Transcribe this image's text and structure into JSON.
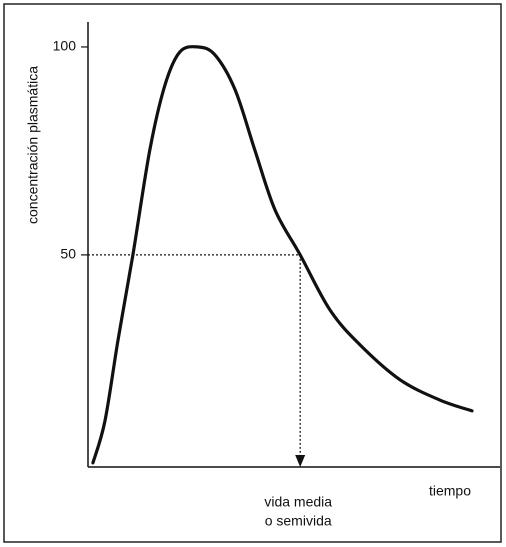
{
  "chart_data": {
    "type": "line",
    "x_label": "tiempo",
    "y_label": "concentración plasmática",
    "x": [
      1.2,
      4.1,
      7.3,
      10.9,
      15.0,
      18.7,
      22.3,
      26.7,
      30.8,
      35.7,
      40.5,
      45.4,
      51.5,
      58.7,
      66.0,
      75.7,
      85.4,
      93.2
    ],
    "values": [
      0,
      10,
      29.6,
      50,
      75.2,
      90.9,
      98.8,
      100,
      98.1,
      89.7,
      75.2,
      60.8,
      50,
      36.8,
      28.4,
      20,
      15.1,
      12.5
    ],
    "color": "#111111",
    "xlim": [
      0,
      100
    ],
    "ylim": [
      -1,
      106
    ],
    "yticks": [
      50,
      100
    ],
    "half_life": {
      "x": 51.5,
      "y": 50,
      "label": [
        "vida media",
        "o semivida"
      ]
    }
  }
}
